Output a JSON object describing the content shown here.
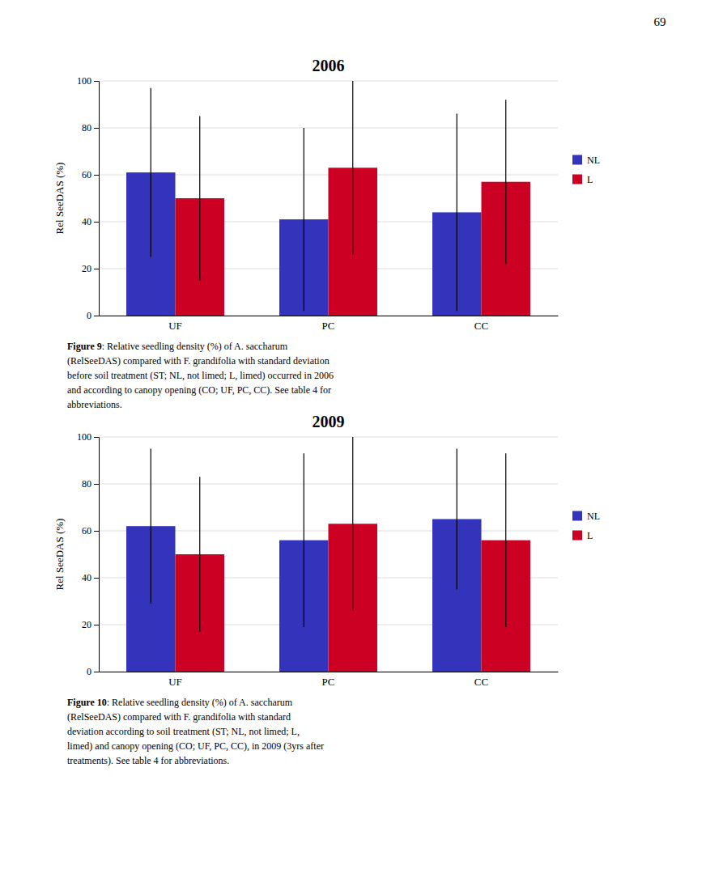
{
  "page_number": "69",
  "chart_data": [
    {
      "type": "bar",
      "title": "2006",
      "categories": [
        "UF",
        "PC",
        "CC"
      ],
      "series": [
        {
          "name": "NL",
          "color": "#3333bb",
          "values": [
            61,
            41,
            44
          ],
          "errors": [
            36,
            39,
            42
          ]
        },
        {
          "name": "L",
          "color": "#cc0022",
          "values": [
            50,
            63,
            57
          ],
          "errors": [
            35,
            37,
            35
          ]
        }
      ],
      "ylabel": "Rel SeeDAS (%)",
      "ylim": [
        0,
        100
      ],
      "yticks": [
        0,
        20,
        40,
        60,
        80,
        100
      ],
      "grid": true,
      "legend": "right",
      "annotations": [
        "Figure 9: Relative seedling density (%) of A. saccharum",
        "(RelSeeDAS) compared with F. grandifolia with standard deviation",
        "before soil treatment (ST; NL, not limed; L, limed) occurred in 2006",
        "and according to canopy opening (CO; UF, PC, CC). See table 4 for",
        "abbreviations."
      ]
    },
    {
      "type": "bar",
      "title": "2009",
      "categories": [
        "UF",
        "PC",
        "CC"
      ],
      "series": [
        {
          "name": "NL",
          "color": "#3333bb",
          "values": [
            62,
            56,
            65
          ],
          "errors": [
            33,
            37,
            30
          ]
        },
        {
          "name": "L",
          "color": "#cc0022",
          "values": [
            50,
            63,
            56
          ],
          "errors": [
            33,
            37,
            37
          ]
        }
      ],
      "ylabel": "Rel SeeDAS (%)",
      "ylim": [
        0,
        100
      ],
      "yticks": [
        0,
        20,
        40,
        60,
        80,
        100
      ],
      "grid": true,
      "legend": "right",
      "annotations": [
        "Figure 10: Relative seedling density (%) of A. saccharum",
        "(RelSeeDAS) compared with F. grandifolia with standard",
        "deviation according to soil treatment (ST; NL, not limed; L,",
        "limed) and canopy opening (CO; UF, PC, CC), in 2009 (3yrs after",
        "treatments). See table 4 for abbreviations."
      ]
    }
  ]
}
